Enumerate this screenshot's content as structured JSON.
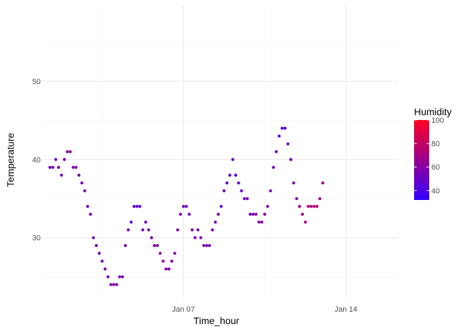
{
  "chart_data": {
    "type": "scatter",
    "title": "",
    "xlabel": "Time_hour",
    "ylabel": "Temperature",
    "x_ticks": [
      {
        "value": "2013-01-07",
        "label": "Jan 07"
      },
      {
        "value": "2013-01-14",
        "label": "Jan 14"
      }
    ],
    "x_minor_ticks": [
      "2013-01-03 12:00",
      "2013-01-10 12:00"
    ],
    "xlim": [
      "2013-01-01 00:00",
      "2013-01-16 06:00"
    ],
    "y_ticks": [
      30,
      40,
      50
    ],
    "y_minor_ticks": [
      25,
      35,
      45,
      55
    ],
    "ylim": [
      22.3,
      59.7
    ],
    "grid": true,
    "legend": {
      "title": "Humidity",
      "placement": "right",
      "labels": [
        40,
        60,
        80,
        100
      ],
      "range": [
        32,
        100
      ],
      "low_color": "#3300ff",
      "high_color": "#ff0022"
    },
    "points": [
      [
        "2013-01-01 06:00",
        39,
        55
      ],
      [
        "2013-01-01 09:00",
        39,
        55
      ],
      [
        "2013-01-01 12:00",
        40,
        55
      ],
      [
        "2013-01-01 15:00",
        39,
        55
      ],
      [
        "2013-01-01 18:00",
        38,
        56
      ],
      [
        "2013-01-01 21:00",
        40,
        58
      ],
      [
        "2013-01-02 00:00",
        41,
        60
      ],
      [
        "2013-01-02 03:00",
        41,
        62
      ],
      [
        "2013-01-02 06:00",
        39,
        60
      ],
      [
        "2013-01-02 09:00",
        39,
        58
      ],
      [
        "2013-01-02 12:00",
        38,
        56
      ],
      [
        "2013-01-02 15:00",
        37,
        55
      ],
      [
        "2013-01-02 18:00",
        36,
        54
      ],
      [
        "2013-01-02 21:00",
        34,
        52
      ],
      [
        "2013-01-03 00:00",
        33,
        50
      ],
      [
        "2013-01-03 03:00",
        30,
        50
      ],
      [
        "2013-01-03 06:00",
        29,
        52
      ],
      [
        "2013-01-03 09:00",
        28,
        54
      ],
      [
        "2013-01-03 12:00",
        27,
        55
      ],
      [
        "2013-01-03 15:00",
        26,
        56
      ],
      [
        "2013-01-03 18:00",
        25,
        57
      ],
      [
        "2013-01-03 21:00",
        24,
        58
      ],
      [
        "2013-01-04 00:00",
        24,
        58
      ],
      [
        "2013-01-04 03:00",
        24,
        57
      ],
      [
        "2013-01-04 06:00",
        25,
        56
      ],
      [
        "2013-01-04 09:00",
        25,
        55
      ],
      [
        "2013-01-04 12:00",
        29,
        54
      ],
      [
        "2013-01-04 15:00",
        31,
        52
      ],
      [
        "2013-01-04 18:00",
        32,
        50
      ],
      [
        "2013-01-04 21:00",
        34,
        48
      ],
      [
        "2013-01-05 00:00",
        34,
        47
      ],
      [
        "2013-01-05 03:00",
        34,
        47
      ],
      [
        "2013-01-05 06:00",
        31,
        50
      ],
      [
        "2013-01-05 09:00",
        32,
        52
      ],
      [
        "2013-01-05 12:00",
        31,
        55
      ],
      [
        "2013-01-05 15:00",
        30,
        57
      ],
      [
        "2013-01-05 18:00",
        29,
        58
      ],
      [
        "2013-01-05 21:00",
        29,
        60
      ],
      [
        "2013-01-06 00:00",
        28,
        62
      ],
      [
        "2013-01-06 03:00",
        27,
        63
      ],
      [
        "2013-01-06 06:00",
        26,
        62
      ],
      [
        "2013-01-06 09:00",
        26,
        60
      ],
      [
        "2013-01-06 12:00",
        27,
        58
      ],
      [
        "2013-01-06 15:00",
        28,
        56
      ],
      [
        "2013-01-06 18:00",
        31,
        55
      ],
      [
        "2013-01-06 21:00",
        33,
        54
      ],
      [
        "2013-01-07 00:00",
        34,
        52
      ],
      [
        "2013-01-07 03:00",
        34,
        52
      ],
      [
        "2013-01-07 06:00",
        33,
        53
      ],
      [
        "2013-01-07 09:00",
        31,
        55
      ],
      [
        "2013-01-07 12:00",
        30,
        56
      ],
      [
        "2013-01-07 15:00",
        31,
        57
      ],
      [
        "2013-01-07 18:00",
        30,
        58
      ],
      [
        "2013-01-07 21:00",
        29,
        58
      ],
      [
        "2013-01-08 00:00",
        29,
        58
      ],
      [
        "2013-01-08 03:00",
        29,
        57
      ],
      [
        "2013-01-08 06:00",
        31,
        56
      ],
      [
        "2013-01-08 09:00",
        32,
        55
      ],
      [
        "2013-01-08 12:00",
        33,
        52
      ],
      [
        "2013-01-08 15:00",
        34,
        50
      ],
      [
        "2013-01-08 18:00",
        36,
        49
      ],
      [
        "2013-01-08 21:00",
        37,
        48
      ],
      [
        "2013-01-09 00:00",
        38,
        46
      ],
      [
        "2013-01-09 03:00",
        40,
        45
      ],
      [
        "2013-01-09 06:00",
        38,
        47
      ],
      [
        "2013-01-09 09:00",
        37,
        48
      ],
      [
        "2013-01-09 12:00",
        36,
        50
      ],
      [
        "2013-01-09 15:00",
        35,
        52
      ],
      [
        "2013-01-09 18:00",
        35,
        53
      ],
      [
        "2013-01-09 21:00",
        33,
        55
      ],
      [
        "2013-01-10 00:00",
        33,
        57
      ],
      [
        "2013-01-10 03:00",
        33,
        59
      ],
      [
        "2013-01-10 06:00",
        32,
        60
      ],
      [
        "2013-01-10 09:00",
        32,
        62
      ],
      [
        "2013-01-10 12:00",
        33,
        60
      ],
      [
        "2013-01-10 15:00",
        34,
        58
      ],
      [
        "2013-01-10 18:00",
        36,
        55
      ],
      [
        "2013-01-10 21:00",
        39,
        52
      ],
      [
        "2013-01-11 00:00",
        41,
        48
      ],
      [
        "2013-01-11 03:00",
        43,
        45
      ],
      [
        "2013-01-11 06:00",
        44,
        44
      ],
      [
        "2013-01-11 09:00",
        44,
        45
      ],
      [
        "2013-01-11 12:00",
        42,
        47
      ],
      [
        "2013-01-11 15:00",
        40,
        50
      ],
      [
        "2013-01-11 18:00",
        37,
        55
      ],
      [
        "2013-01-11 21:00",
        35,
        60
      ],
      [
        "2013-01-12 00:00",
        34,
        65
      ],
      [
        "2013-01-12 03:00",
        33,
        68
      ],
      [
        "2013-01-12 06:00",
        32,
        70
      ],
      [
        "2013-01-12 09:00",
        34,
        70
      ],
      [
        "2013-01-12 12:00",
        34,
        72
      ],
      [
        "2013-01-12 15:00",
        34,
        74
      ],
      [
        "2013-01-12 18:00",
        34,
        75
      ],
      [
        "2013-01-12 21:00",
        35,
        72
      ],
      [
        "2013-01-13 00:00",
        37,
        68
      ]
    ]
  }
}
